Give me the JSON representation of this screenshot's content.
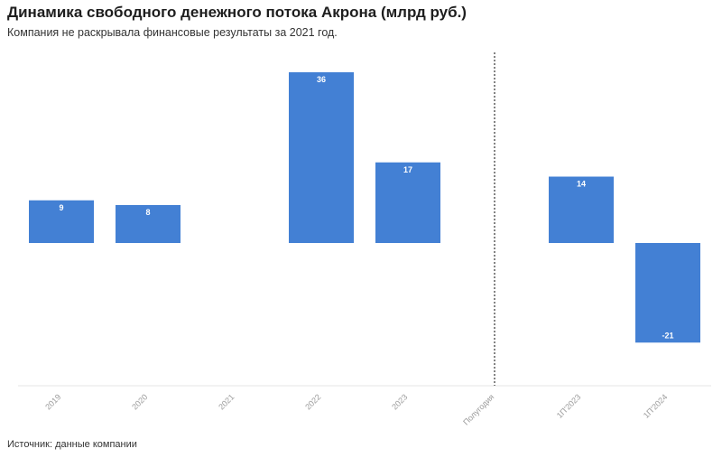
{
  "header": {
    "title": "Динамика свободного денежного потока Акрона (млрд руб.)",
    "subtitle": "Компания не раскрывала финансовые результаты за 2021 год."
  },
  "footer": {
    "source": "Источник: данные компании"
  },
  "colors": {
    "bar": "#4380d4",
    "separator": "#333333",
    "baseline": "#e6e6e6"
  },
  "chart_data": {
    "type": "bar",
    "title": "Динамика свободного денежного потока Акрона (млрд руб.)",
    "xlabel": "",
    "ylabel": "",
    "categories": [
      "2019",
      "2020",
      "2021",
      "2022",
      "2023",
      "Полугодия",
      "1П'2023",
      "1П'2024"
    ],
    "values": [
      9,
      8,
      null,
      36,
      17,
      null,
      14,
      -21
    ],
    "data_labels": [
      "9",
      "8",
      "",
      "36",
      "17",
      "",
      "14",
      "-21"
    ],
    "separator_after_category": "2023",
    "ylim": [
      -30,
      40
    ],
    "grid": false,
    "legend": "none"
  }
}
